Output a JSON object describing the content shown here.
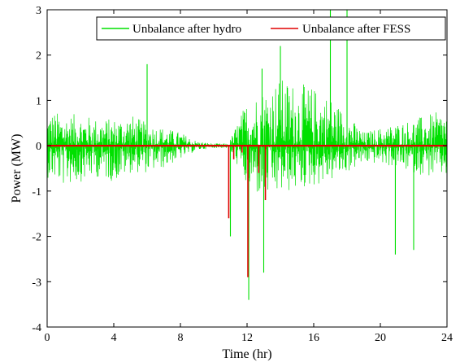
{
  "chart_data": {
    "type": "line",
    "title": "",
    "xlabel": "Time (hr)",
    "ylabel": "Power (MW)",
    "xlim": [
      0,
      24
    ],
    "ylim": [
      -4,
      3
    ],
    "xticks": [
      0,
      4,
      8,
      12,
      16,
      20,
      24
    ],
    "yticks": [
      -4,
      -3,
      -2,
      -1,
      0,
      1,
      2,
      3
    ],
    "grid": false,
    "legend_position": "top-right",
    "series": [
      {
        "name": "Unbalance after hydro",
        "color": "#00e000",
        "envelope": [
          {
            "x": 0,
            "lo": -0.7,
            "hi": 0.8
          },
          {
            "x": 1,
            "lo": -0.9,
            "hi": 0.7
          },
          {
            "x": 2,
            "lo": -0.8,
            "hi": 0.7
          },
          {
            "x": 3,
            "lo": -0.7,
            "hi": 0.6
          },
          {
            "x": 4,
            "lo": -0.8,
            "hi": 0.6
          },
          {
            "x": 5,
            "lo": -0.6,
            "hi": 0.7
          },
          {
            "x": 6,
            "lo": -0.6,
            "hi": 0.5
          },
          {
            "x": 7,
            "lo": -0.5,
            "hi": 0.4
          },
          {
            "x": 8,
            "lo": -0.3,
            "hi": 0.3
          },
          {
            "x": 9,
            "lo": -0.1,
            "hi": 0.1
          },
          {
            "x": 10,
            "lo": -0.05,
            "hi": 0.05
          },
          {
            "x": 10.9,
            "lo": -0.05,
            "hi": 0.05
          },
          {
            "x": 11.5,
            "lo": -0.5,
            "hi": 0.6
          },
          {
            "x": 12,
            "lo": -1.0,
            "hi": 1.0
          },
          {
            "x": 13,
            "lo": -1.2,
            "hi": 1.3
          },
          {
            "x": 14,
            "lo": -1.1,
            "hi": 1.5
          },
          {
            "x": 15,
            "lo": -1.0,
            "hi": 1.4
          },
          {
            "x": 16,
            "lo": -0.9,
            "hi": 1.3
          },
          {
            "x": 17,
            "lo": -0.8,
            "hi": 1.1
          },
          {
            "x": 18,
            "lo": -0.6,
            "hi": 0.7
          },
          {
            "x": 19,
            "lo": -0.4,
            "hi": 0.3
          },
          {
            "x": 20,
            "lo": -0.4,
            "hi": 0.4
          },
          {
            "x": 21,
            "lo": -0.5,
            "hi": 0.5
          },
          {
            "x": 22,
            "lo": -0.6,
            "hi": 0.6
          },
          {
            "x": 23,
            "lo": -0.7,
            "hi": 0.7
          },
          {
            "x": 24,
            "lo": -0.7,
            "hi": 0.8
          }
        ],
        "spikes": [
          {
            "x": 6.0,
            "y": 1.8
          },
          {
            "x": 11.0,
            "y": -2.0
          },
          {
            "x": 12.1,
            "y": -3.4
          },
          {
            "x": 12.9,
            "y": 1.7
          },
          {
            "x": 13.0,
            "y": -2.8
          },
          {
            "x": 14.0,
            "y": 2.2
          },
          {
            "x": 17.0,
            "y": 3.0
          },
          {
            "x": 18.0,
            "y": 3.0
          },
          {
            "x": 20.9,
            "y": -2.4
          },
          {
            "x": 22.0,
            "y": -2.3
          }
        ]
      },
      {
        "name": "Unbalance after FESS",
        "color": "#e00000",
        "baseline": 0,
        "spikes": [
          {
            "x": 10.9,
            "y": -1.6
          },
          {
            "x": 11.2,
            "y": -0.3
          },
          {
            "x": 11.7,
            "y": -0.15
          },
          {
            "x": 12.05,
            "y": -2.9
          },
          {
            "x": 12.7,
            "y": -0.6
          },
          {
            "x": 13.1,
            "y": -1.2
          }
        ]
      }
    ]
  }
}
